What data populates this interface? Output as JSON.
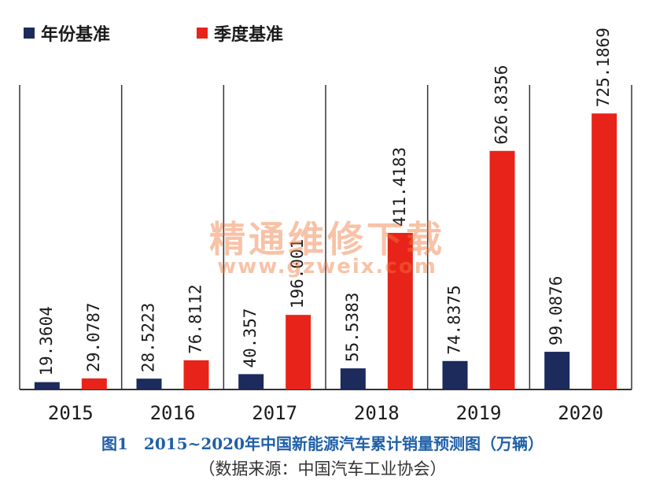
{
  "legend": {
    "annual_label": "年份基准",
    "quarterly_label": "季度基准"
  },
  "colors": {
    "annual": "#1c2a5c",
    "quarterly": "#e8231a",
    "axis": "#333333",
    "caption": "#1f5fa8"
  },
  "chart_data": {
    "type": "bar",
    "categories": [
      "2015",
      "2016",
      "2017",
      "2018",
      "2019",
      "2020"
    ],
    "series": [
      {
        "name": "年份基准",
        "values": [
          19.3604,
          28.5223,
          40.357,
          55.5383,
          74.8375,
          99.0876
        ]
      },
      {
        "name": "季度基准",
        "values": [
          29.0787,
          76.8112,
          196.001,
          411.4183,
          626.8356,
          725.1869
        ]
      }
    ],
    "value_labels": [
      [
        "19.3604",
        "28.5223",
        "40.357",
        "55.5383",
        "74.8375",
        "99.0876"
      ],
      [
        "29.0787",
        "76.8112",
        "196.001",
        "411.4183",
        "626.8356",
        "725.1869"
      ]
    ],
    "ylim": [
      0,
      800
    ],
    "grid": false,
    "legend_position": "top-left"
  },
  "caption": {
    "title": "图1　2015~2020年中国新能源汽车累计销量预测图（万辆）",
    "source": "（数据来源：中国汽车工业协会）"
  },
  "watermark": {
    "text": "精通维修下载",
    "url": "www.gzweix.com"
  }
}
